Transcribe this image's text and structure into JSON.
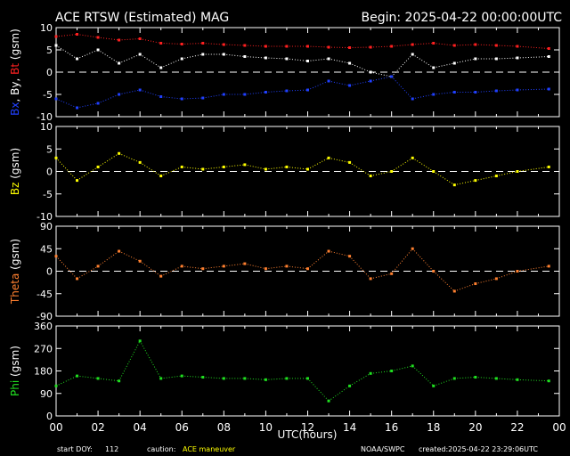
{
  "header": {
    "title": "ACE RTSW (Estimated) MAG",
    "begin_label": "Begin: 2025-04-22 00:00:00UTC"
  },
  "footer": {
    "start_doy_label": "start DOY:",
    "start_doy_value": "112",
    "caution_label": "caution:",
    "caution_value": "ACE maneuver",
    "source": "NOAA/SWPC",
    "created": "created:2025-04-22 23:29:06UTC"
  },
  "colors": {
    "background": "#000000",
    "frame": "#ffffff",
    "bx": "#2040ff",
    "by": "#ffffff",
    "bt": "#ff2020",
    "bz": "#ffff00",
    "theta": "#ff8030",
    "phi": "#20e020"
  },
  "chart_data": [
    {
      "type": "scatter",
      "ylabel": "Bx, By, Bt (gsm)",
      "ylim": [
        -10,
        10
      ],
      "yticks": [
        "10",
        "5",
        "0",
        "-5",
        "-10"
      ],
      "zero_line": true,
      "series": [
        {
          "name": "Bt",
          "color": "#ff2020",
          "x": [
            0,
            1,
            2,
            3,
            4,
            5,
            6,
            7,
            8,
            9,
            10,
            11,
            12,
            13,
            14,
            15,
            16,
            17,
            18,
            19,
            20,
            21,
            22,
            23.5
          ],
          "y": [
            8,
            8.5,
            7.8,
            7.2,
            7.5,
            6.5,
            6.3,
            6.5,
            6.2,
            6,
            5.8,
            5.8,
            5.8,
            5.6,
            5.5,
            5.6,
            5.8,
            6.2,
            6.5,
            6,
            6.2,
            6,
            5.8,
            5.3
          ]
        },
        {
          "name": "By",
          "color": "#ffffff",
          "x": [
            0,
            1,
            2,
            3,
            4,
            5,
            6,
            7,
            8,
            9,
            10,
            11,
            12,
            13,
            14,
            15,
            16,
            17,
            18,
            19,
            20,
            21,
            22,
            23.5
          ],
          "y": [
            6,
            3,
            5,
            2,
            4,
            1,
            3,
            4,
            4,
            3.5,
            3.2,
            3,
            2.5,
            3,
            2,
            0,
            -1,
            4,
            1,
            2,
            3,
            3,
            3.2,
            3.5
          ]
        },
        {
          "name": "Bx",
          "color": "#2040ff",
          "x": [
            0,
            1,
            2,
            3,
            4,
            5,
            6,
            7,
            8,
            9,
            10,
            11,
            12,
            13,
            14,
            15,
            16,
            17,
            18,
            19,
            20,
            21,
            22,
            23.5
          ],
          "y": [
            -6,
            -8,
            -7,
            -5,
            -4,
            -5.5,
            -6,
            -5.8,
            -5,
            -5,
            -4.5,
            -4.2,
            -4,
            -2,
            -3,
            -2,
            -1,
            -6,
            -5,
            -4.5,
            -4.5,
            -4.2,
            -4,
            -3.8
          ]
        }
      ]
    },
    {
      "type": "scatter",
      "ylabel": "Bz (gsm)",
      "ylim": [
        -10,
        10
      ],
      "yticks": [
        "10",
        "5",
        "0",
        "-5",
        "-10"
      ],
      "zero_line": true,
      "series": [
        {
          "name": "Bz",
          "color": "#ffff00",
          "x": [
            0,
            1,
            2,
            3,
            4,
            5,
            6,
            7,
            8,
            9,
            10,
            11,
            12,
            13,
            14,
            15,
            16,
            17,
            18,
            19,
            20,
            21,
            22,
            23.5
          ],
          "y": [
            3,
            -2,
            1,
            4,
            2,
            -1,
            1,
            0.5,
            1,
            1.5,
            0.5,
            1,
            0.5,
            3,
            2,
            -1,
            0,
            3,
            0,
            -3,
            -2,
            -1,
            0,
            1
          ]
        }
      ]
    },
    {
      "type": "scatter",
      "ylabel": "Theta (gsm)",
      "ylim": [
        -90,
        90
      ],
      "yticks": [
        "90",
        "45",
        "0",
        "-45",
        "-90"
      ],
      "zero_line": true,
      "series": [
        {
          "name": "Theta",
          "color": "#ff8030",
          "x": [
            0,
            1,
            2,
            3,
            4,
            5,
            6,
            7,
            8,
            9,
            10,
            11,
            12,
            13,
            14,
            15,
            16,
            17,
            18,
            19,
            20,
            21,
            22,
            23.5
          ],
          "y": [
            30,
            -15,
            10,
            40,
            20,
            -10,
            10,
            5,
            10,
            15,
            5,
            10,
            5,
            40,
            30,
            -15,
            -5,
            45,
            0,
            -40,
            -25,
            -15,
            0,
            10
          ]
        }
      ]
    },
    {
      "type": "scatter",
      "ylabel": "Phi (gsm)",
      "ylim": [
        0,
        360
      ],
      "yticks": [
        "360",
        "270",
        "180",
        "90",
        "0"
      ],
      "zero_line": false,
      "series": [
        {
          "name": "Phi",
          "color": "#20e020",
          "x": [
            0,
            1,
            2,
            3,
            4,
            5,
            6,
            7,
            8,
            9,
            10,
            11,
            12,
            13,
            14,
            15,
            16,
            17,
            18,
            19,
            20,
            21,
            22,
            23.5
          ],
          "y": [
            120,
            160,
            150,
            140,
            300,
            150,
            160,
            155,
            150,
            150,
            145,
            150,
            150,
            60,
            120,
            170,
            180,
            200,
            120,
            150,
            155,
            150,
            145,
            140
          ]
        }
      ]
    }
  ],
  "x_axis": {
    "label": "UTC(hours)",
    "xlim": [
      0,
      24
    ],
    "ticks": [
      "00",
      "02",
      "04",
      "06",
      "08",
      "10",
      "12",
      "14",
      "16",
      "18",
      "20",
      "22",
      "00"
    ]
  }
}
